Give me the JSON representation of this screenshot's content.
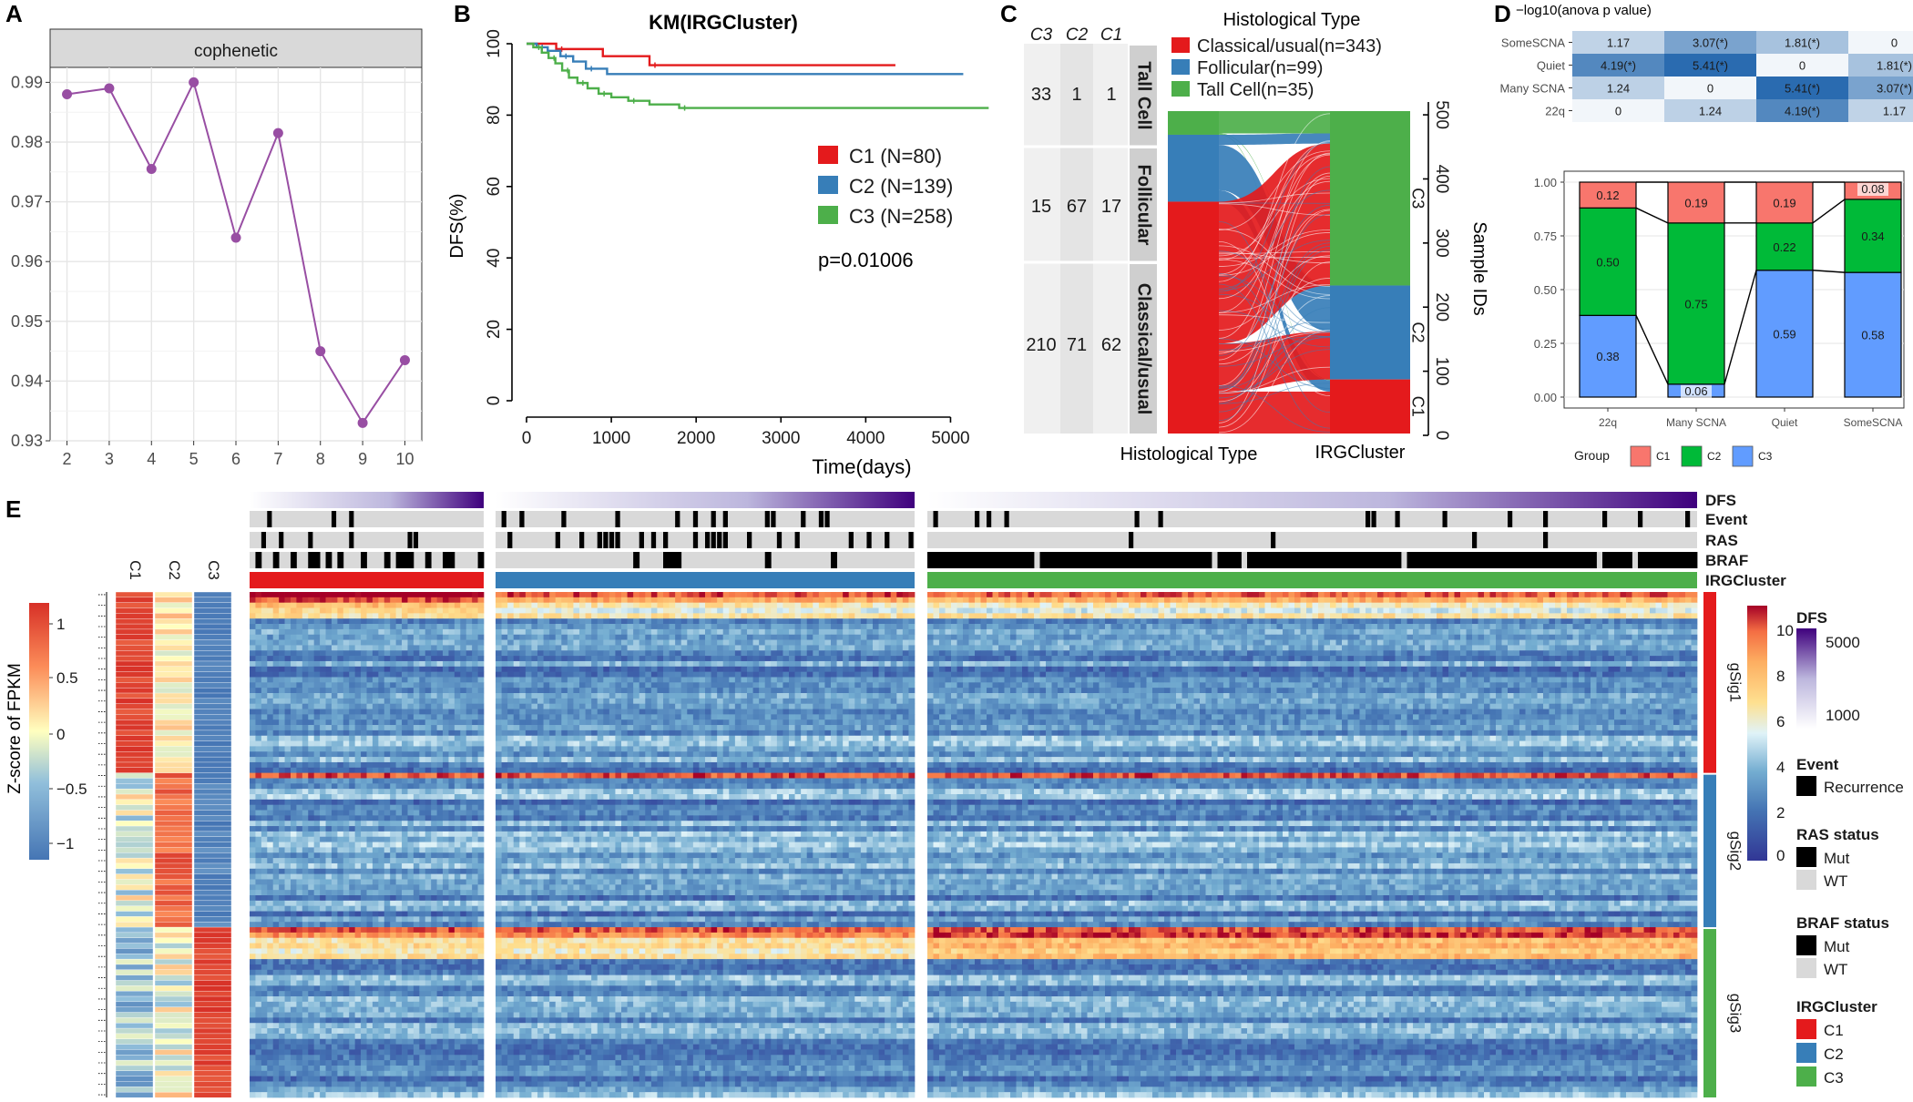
{
  "panel_labels": [
    "A",
    "B",
    "C",
    "D",
    "E"
  ],
  "colors": {
    "c1": "#e41a1c",
    "c2": "#377eb8",
    "c3": "#4daf4a",
    "d_c1": "#f8766d",
    "d_c2": "#00ba38",
    "d_c3": "#619cff",
    "purple": "#984ea3",
    "grid": "#ebebeb",
    "strip": "#d9d9d9"
  },
  "chart_data": [
    {
      "id": "A",
      "type": "line",
      "strip_label": "cophenetic",
      "x": [
        2,
        3,
        4,
        5,
        6,
        7,
        8,
        9,
        10
      ],
      "y": [
        0.988,
        0.989,
        0.9755,
        0.99,
        0.964,
        0.9815,
        0.945,
        0.933,
        0.9435
      ],
      "xlim": [
        1.6,
        10.4
      ],
      "ylim": [
        0.93,
        0.9925
      ],
      "xticks": [
        "2",
        "3",
        "4",
        "5",
        "6",
        "7",
        "8",
        "9",
        "10"
      ],
      "yticks": [
        0.93,
        0.94,
        0.95,
        0.96,
        0.97,
        0.98,
        0.99
      ],
      "ytick_labels": [
        "0.93",
        "0.94",
        "0.95",
        "0.96",
        "0.97",
        "0.98",
        "0.99"
      ],
      "grid": true
    },
    {
      "id": "B",
      "type": "line",
      "title": "KM(IRGCluster)",
      "xlabel": "Time(days)",
      "ylabel": "DFS(%)",
      "xlim": [
        0,
        5500
      ],
      "ylim": [
        0,
        100
      ],
      "xticks": [
        0,
        1000,
        2000,
        3000,
        4000,
        5000
      ],
      "xtick_labels": [
        "0",
        "1000",
        "2000",
        "3000",
        "4000",
        "5000"
      ],
      "yticks": [
        0,
        20,
        40,
        60,
        80,
        100
      ],
      "ytick_labels": [
        "0",
        "20",
        "40",
        "60",
        "80",
        "100"
      ],
      "series": [
        {
          "name": "C1 (N=80)",
          "color": "#e41a1c",
          "x": [
            0,
            350,
            350,
            900,
            900,
            1450,
            1450,
            4350
          ],
          "y": [
            100,
            100,
            98.5,
            98.5,
            96.5,
            96.5,
            94,
            94
          ]
        },
        {
          "name": "C2 (N=139)",
          "color": "#377eb8",
          "x": [
            0,
            120,
            120,
            250,
            250,
            400,
            400,
            550,
            550,
            700,
            700,
            950,
            950,
            5150
          ],
          "y": [
            100,
            100,
            99,
            99,
            98,
            98,
            96.5,
            96.5,
            95,
            95,
            93,
            93,
            91.5,
            91.5
          ]
        },
        {
          "name": "C3 (N=258)",
          "color": "#4daf4a",
          "x": [
            0,
            80,
            80,
            180,
            180,
            260,
            260,
            340,
            340,
            420,
            420,
            500,
            500,
            600,
            600,
            720,
            720,
            850,
            850,
            1000,
            1000,
            1200,
            1200,
            1450,
            1450,
            1800,
            1800,
            5450
          ],
          "y": [
            100,
            100,
            99,
            99,
            97.5,
            97.5,
            96,
            96,
            94.5,
            94.5,
            92.5,
            92.5,
            90.5,
            90.5,
            89,
            89,
            87.5,
            87.5,
            86,
            86,
            85,
            85,
            84,
            84,
            83,
            83,
            82,
            82
          ]
        }
      ],
      "pvalue": "p=0.01006"
    },
    {
      "id": "C",
      "type": "table",
      "title": "Histological Type",
      "col_headers": [
        "C3",
        "C2",
        "C1"
      ],
      "rows": [
        {
          "label": "Tall Cell",
          "values": [
            "33",
            "1",
            "1"
          ]
        },
        {
          "label": "Follicular",
          "values": [
            "15",
            "67",
            "17"
          ]
        },
        {
          "label": "Classical/usual",
          "values": [
            "210",
            "71",
            "62"
          ]
        }
      ],
      "legend": [
        {
          "name": "Classical/usual(n=343)",
          "color": "#e41a1c"
        },
        {
          "name": "Follicular(n=99)",
          "color": "#377eb8"
        },
        {
          "name": "Tall Cell(n=35)",
          "color": "#4daf4a"
        }
      ],
      "alluvial": {
        "left_axis_label": "Histological Type",
        "right_axis_label": "IRGCluster",
        "right_segments": [
          "C3",
          "C2",
          "C1"
        ],
        "side_axis_label": "Sample IDs",
        "side_ticks": [
          "0",
          "100",
          "200",
          "300",
          "400",
          "500"
        ],
        "total": 477
      }
    },
    {
      "id": "D-heatmap",
      "type": "heatmap",
      "title": "−log10(anova p value)",
      "rows": [
        "SomeSCNA",
        "Quiet",
        "Many SCNA",
        "22q"
      ],
      "cols": [
        "22q",
        "Many SCNA",
        "Quiet",
        "SomeSCNA"
      ],
      "values": [
        [
          1.17,
          3.07,
          1.81,
          0
        ],
        [
          4.19,
          5.41,
          0,
          1.81
        ],
        [
          1.24,
          0,
          5.41,
          3.07
        ],
        [
          0,
          1.24,
          4.19,
          1.17
        ]
      ],
      "labels": [
        [
          "1.17",
          "3.07(*)",
          "1.81(*)",
          "0"
        ],
        [
          "4.19(*)",
          "5.41(*)",
          "0",
          "1.81(*)"
        ],
        [
          "1.24",
          "0",
          "5.41(*)",
          "3.07(*)"
        ],
        [
          "0",
          "1.24",
          "4.19(*)",
          "1.17"
        ]
      ]
    },
    {
      "id": "D-bar",
      "type": "bar",
      "stacked": true,
      "categories": [
        "22q",
        "Many SCNA",
        "Quiet",
        "SomeSCNA"
      ],
      "ylim": [
        0,
        1
      ],
      "yticks": [
        "0.00",
        "0.25",
        "0.50",
        "0.75",
        "1.00"
      ],
      "series": [
        {
          "name": "C3",
          "color": "#619cff",
          "values": [
            0.38,
            0.06,
            0.59,
            0.58
          ],
          "labels": [
            "0.38",
            "0.06",
            "0.59",
            "0.58"
          ]
        },
        {
          "name": "C2",
          "color": "#00ba38",
          "values": [
            0.5,
            0.75,
            0.22,
            0.34
          ],
          "labels": [
            "0.50",
            "0.75",
            "0.22",
            "0.34"
          ]
        },
        {
          "name": "C1",
          "color": "#f8766d",
          "values": [
            0.12,
            0.19,
            0.19,
            0.08
          ],
          "labels": [
            "0.12",
            "0.19",
            "0.19",
            "0.08"
          ]
        }
      ],
      "legend_title": "Group",
      "legend_items": [
        "C1",
        "C2",
        "C3"
      ]
    },
    {
      "id": "E",
      "type": "heatmap",
      "mean_cols": [
        "C1",
        "C2",
        "C3"
      ],
      "mean_scale_title": "Z-score of FPKM",
      "mean_scale_ticks": [
        "1",
        "0.5",
        "0",
        "−0.5",
        "−1"
      ],
      "annotation_tracks": [
        "DFS",
        "Event",
        "RAS",
        "BRAF",
        "IRGCluster"
      ],
      "cluster_sizes": {
        "C1": 80,
        "C2": 139,
        "C3": 258
      },
      "gene_groups": [
        {
          "name": "gSig1",
          "color": "#e41a1c"
        },
        {
          "name": "gSig2",
          "color": "#377eb8"
        },
        {
          "name": "gSig3",
          "color": "#4daf4a"
        }
      ],
      "expression_scale_ticks": [
        "10",
        "8",
        "6",
        "4",
        "2",
        "0"
      ],
      "legends": {
        "dfs": {
          "title": "DFS",
          "ticks": [
            "5000",
            "1000"
          ]
        },
        "event": {
          "title": "Event",
          "items": [
            "Recurrence"
          ]
        },
        "ras": {
          "title": "RAS status",
          "items": [
            "Mut",
            "WT"
          ]
        },
        "braf": {
          "title": "BRAF status",
          "items": [
            "Mut",
            "WT"
          ]
        },
        "cluster": {
          "title": "IRGCluster",
          "items": [
            "C1",
            "C2",
            "C3"
          ]
        }
      }
    }
  ]
}
